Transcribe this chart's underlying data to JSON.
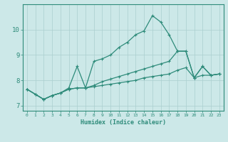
{
  "xlabel": "Humidex (Indice chaleur)",
  "x": [
    0,
    1,
    2,
    3,
    4,
    5,
    6,
    7,
    8,
    9,
    10,
    11,
    12,
    13,
    14,
    15,
    16,
    17,
    18,
    19,
    20,
    21,
    22,
    23
  ],
  "line1": [
    7.65,
    7.45,
    7.25,
    7.4,
    7.5,
    7.7,
    8.55,
    7.7,
    8.75,
    8.85,
    9.0,
    9.3,
    9.5,
    9.8,
    9.95,
    10.55,
    10.3,
    9.8,
    9.15,
    9.15,
    8.1,
    8.55,
    8.2,
    8.25
  ],
  "line2": [
    7.65,
    7.45,
    7.25,
    7.4,
    7.5,
    7.65,
    7.7,
    7.7,
    7.8,
    7.95,
    8.05,
    8.15,
    8.25,
    8.35,
    8.45,
    8.55,
    8.65,
    8.75,
    9.15,
    9.15,
    8.1,
    8.55,
    8.2,
    8.25
  ],
  "line3": [
    7.65,
    7.45,
    7.25,
    7.4,
    7.5,
    7.65,
    7.7,
    7.7,
    7.75,
    7.8,
    7.85,
    7.9,
    7.95,
    8.0,
    8.1,
    8.15,
    8.2,
    8.25,
    8.4,
    8.5,
    8.1,
    8.2,
    8.2,
    8.25
  ],
  "color": "#2e8b7a",
  "bg_color": "#cce8e8",
  "grid_color": "#aacfcf",
  "ylim": [
    6.8,
    11.0
  ],
  "xlim": [
    -0.5,
    23.5
  ],
  "yticks": [
    7,
    8,
    9,
    10
  ],
  "xticks": [
    0,
    1,
    2,
    3,
    4,
    5,
    6,
    7,
    8,
    9,
    10,
    11,
    12,
    13,
    14,
    15,
    16,
    17,
    18,
    19,
    20,
    21,
    22,
    23
  ]
}
